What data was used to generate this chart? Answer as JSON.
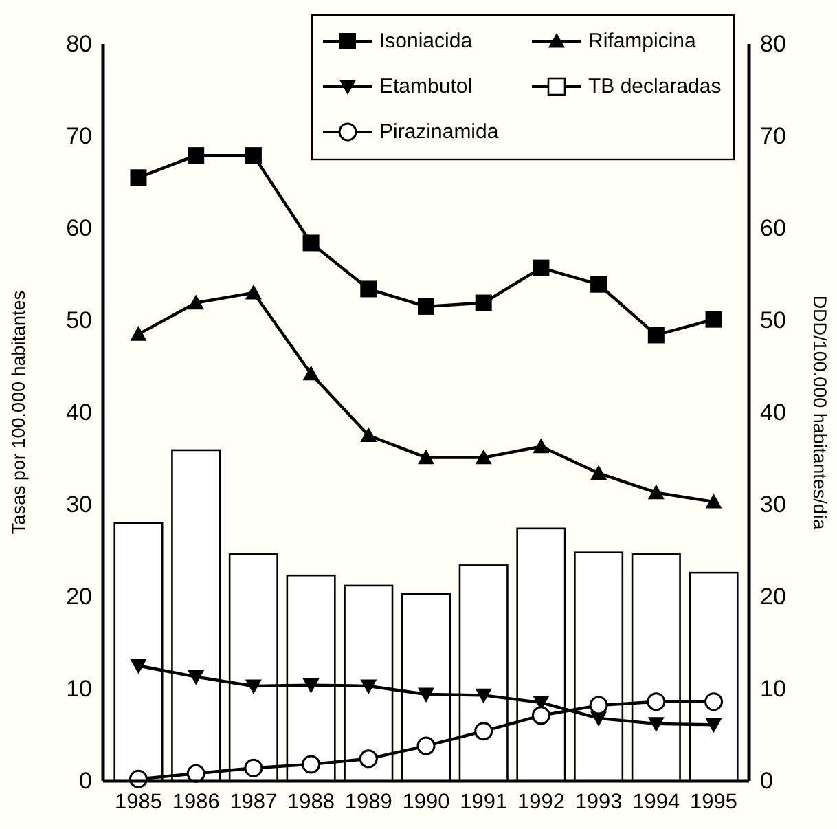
{
  "chart_data": {
    "type": "bar",
    "categories": [
      "1985",
      "1986",
      "1987",
      "1988",
      "1989",
      "1990",
      "1991",
      "1992",
      "1993",
      "1994",
      "1995"
    ],
    "ylabel": "Tasas por 100.000 habitantes",
    "y2label": "DDD/100.000 habitantes/día",
    "ylim": [
      0,
      80
    ],
    "yticks": [
      0,
      10,
      20,
      30,
      40,
      50,
      60,
      70,
      80
    ],
    "y2lim": [
      0,
      80
    ],
    "y2ticks": [
      0,
      10,
      20,
      30,
      40,
      50,
      60,
      70,
      80
    ],
    "grid": false,
    "legend": "top right",
    "series": [
      {
        "name": "Isoniacida",
        "type": "line",
        "color": "#000000",
        "marker": "square",
        "values": [
          65.5,
          67.9,
          67.9,
          58.4,
          53.4,
          51.5,
          51.9,
          55.7,
          53.9,
          48.4,
          50.1
        ]
      },
      {
        "name": "Rifampicina",
        "type": "line",
        "color": "#000000",
        "marker": "triangle",
        "values": [
          48.5,
          51.9,
          53.0,
          44.2,
          37.5,
          35.1,
          35.1,
          36.3,
          33.4,
          31.3,
          30.3
        ]
      },
      {
        "name": "Etambutol",
        "type": "line",
        "color": "#000000",
        "marker": "triangle-down",
        "values": [
          12.5,
          11.3,
          10.3,
          10.4,
          10.3,
          9.4,
          9.3,
          8.5,
          6.8,
          6.2,
          6.1
        ]
      },
      {
        "name": "TB declaradas",
        "color": "#ffffff",
        "values": [
          28.0,
          35.9,
          24.6,
          22.3,
          21.2,
          20.3,
          23.4,
          27.4,
          24.8,
          24.6,
          22.6
        ]
      },
      {
        "name": "Pirazinamida",
        "type": "line",
        "color": "#000000",
        "marker": "circle",
        "values": [
          0.2,
          0.8,
          1.4,
          1.8,
          2.4,
          3.8,
          5.4,
          7.1,
          8.2,
          8.6,
          8.6
        ]
      }
    ]
  }
}
